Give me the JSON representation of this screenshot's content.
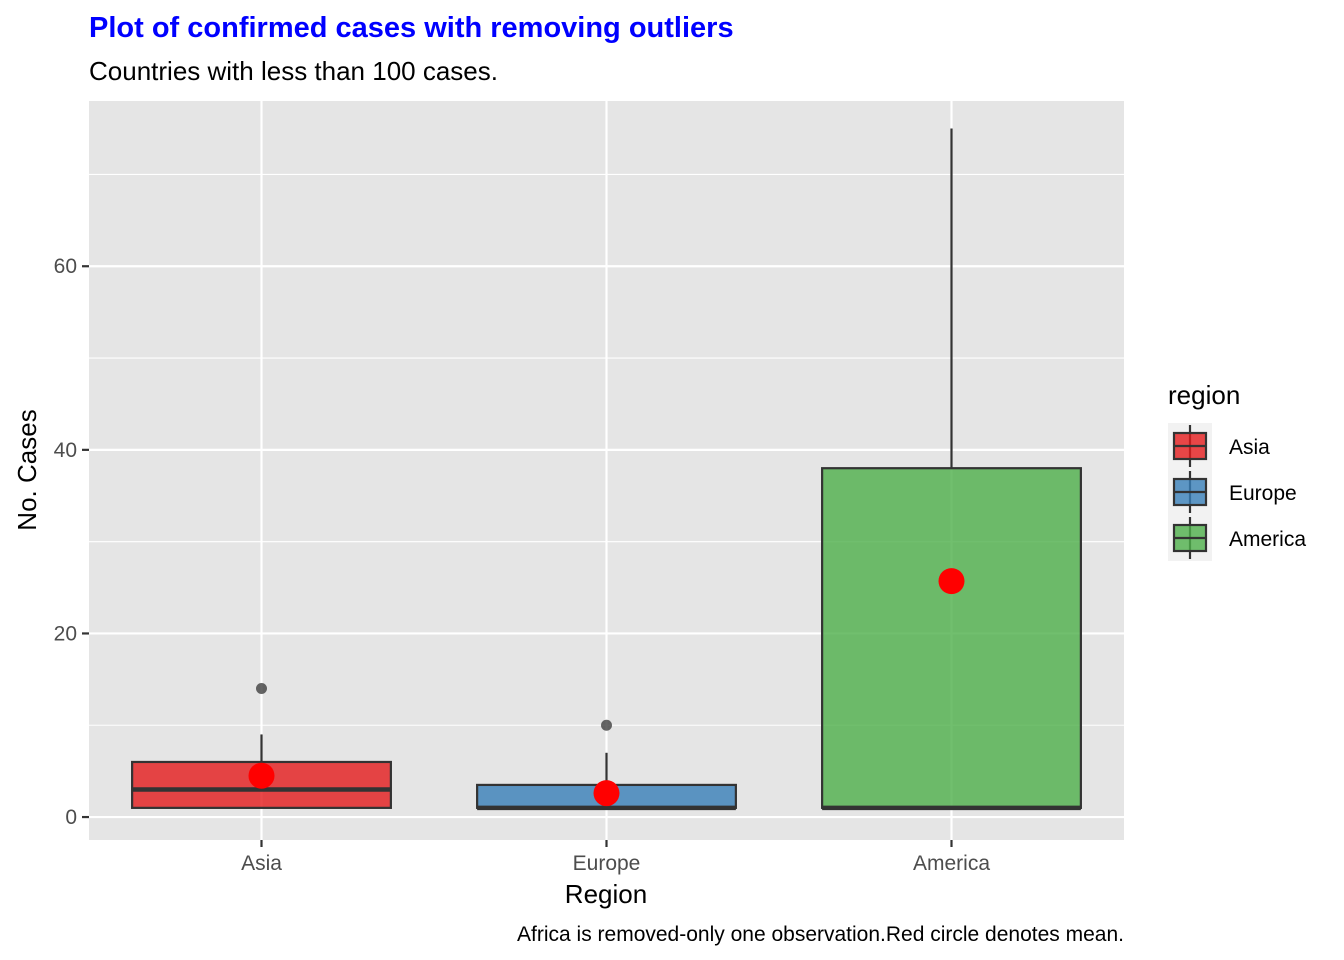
{
  "chart_data": {
    "type": "boxplot",
    "title": "Plot of confirmed cases with removing outliers",
    "subtitle": "Countries with less than 100 cases.",
    "caption": "Africa is removed-only one observation.Red circle denotes mean.",
    "xlabel": "Region",
    "ylabel": "No. Cases",
    "ylim": [
      -2.5,
      78
    ],
    "yticks": [
      0,
      20,
      40,
      60
    ],
    "categories": [
      "Asia",
      "Europe",
      "America"
    ],
    "legend": {
      "title": "region",
      "placement": "right"
    },
    "grid": true,
    "series": [
      {
        "name": "Asia",
        "color": "#E41A1C",
        "min": 1,
        "q1": 1,
        "median": 3,
        "q3": 6,
        "max": 9,
        "outliers": [
          14
        ],
        "mean": 4.5
      },
      {
        "name": "Europe",
        "color": "#377EB8",
        "min": 1,
        "q1": 1,
        "median": 1,
        "q3": 3.5,
        "max": 7,
        "outliers": [
          10
        ],
        "mean": 2.6
      },
      {
        "name": "America",
        "color": "#4DAF4A",
        "min": 1,
        "q1": 1,
        "median": 1,
        "q3": 38,
        "max": 75,
        "outliers": [],
        "mean": 25.7
      }
    ],
    "colors": {
      "title": "#0000FF",
      "mean_marker": "#FF0000",
      "panel_bg": "#E5E5E5"
    }
  }
}
